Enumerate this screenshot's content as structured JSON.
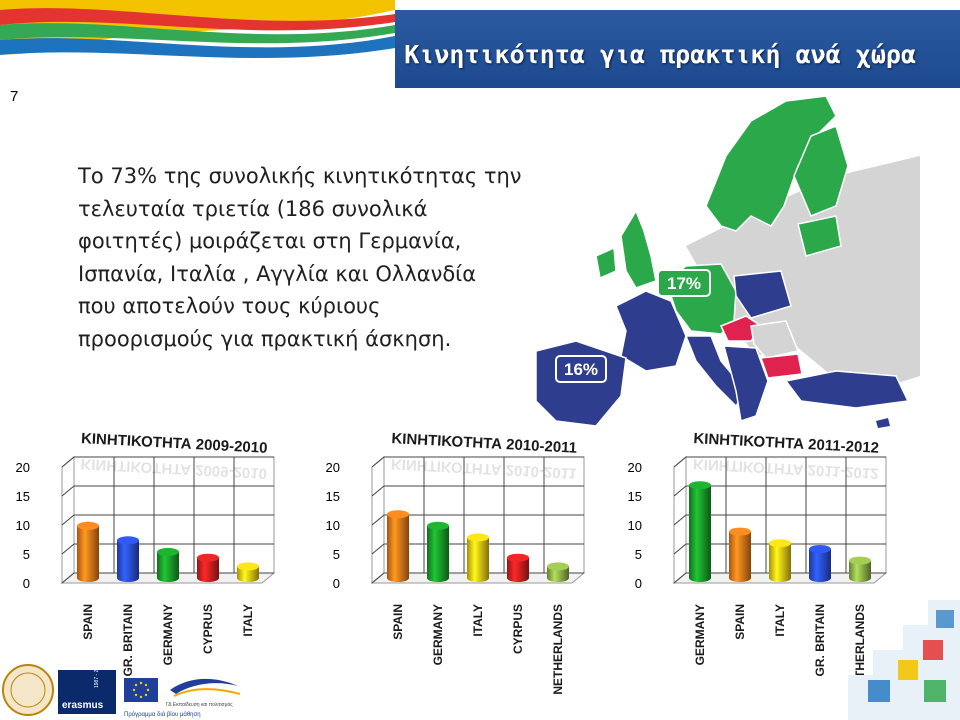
{
  "header": {
    "title": "Κινητικότητα για πρακτική ανά χώρα",
    "slide_number": "7"
  },
  "body": {
    "paragraph_lines": [
      "Το 73% της συνολικής κινητικότητας την",
      "τελευταία τριετία (186 συνολικά",
      "φοιτητές) μοιράζεται στη Γερμανία,",
      "Ισπανία, Ιταλία , Αγγλία και Ολλανδία",
      "που αποτελούν τους κύριους",
      "προορισμούς για πρακτική άσκηση."
    ]
  },
  "map": {
    "label_germany_share": "17%",
    "label_spain_share": "16%",
    "colors": {
      "green": "#2aa84a",
      "blue": "#2f3d8f",
      "red": "#e0224e",
      "grey": "#d4d4d4"
    }
  },
  "footer": {
    "program_text": "Πρόγραμμα διά βίου μάθηση",
    "ministry_text": "ΓΔ Εκπαίδευση και πολιτισμός",
    "erasmus_label": "erasmus",
    "erasmus_years": "1987 - 2012"
  },
  "chart_data": [
    {
      "type": "bar",
      "title": "ΚΙΝΗΤΙΚΟΤΗΤΑ 2009-2010",
      "categories": [
        "SPAIN",
        "GR. BRITAIN",
        "GERMANY",
        "CYPRUS",
        "ITALY"
      ],
      "values": [
        9,
        6.5,
        4.5,
        3.5,
        2
      ],
      "colors": [
        "#f07a1a",
        "#2a4ee0",
        "#1a9e2a",
        "#d42020",
        "#f0c814"
      ],
      "yticks": [
        "0",
        "5",
        "10",
        "15",
        "20"
      ],
      "ylim": [
        0,
        20
      ],
      "grid": true
    },
    {
      "type": "bar",
      "title": "ΚΙΝΗΤΙΚΟΤΗΤΑ 2010-2011",
      "categories": [
        "SPAIN",
        "GERMANY",
        "ITALY",
        "CYRPUS",
        "NETHERLANDS"
      ],
      "values": [
        11,
        9,
        7,
        3.5,
        2
      ],
      "colors": [
        "#f07a1a",
        "#1a9e2a",
        "#f0c814",
        "#d42020",
        "#8fb34a"
      ],
      "yticks": [
        "0",
        "5",
        "10",
        "15",
        "20"
      ],
      "ylim": [
        0,
        20
      ],
      "grid": true
    },
    {
      "type": "bar",
      "title": "ΚΙΝΗΤΙΚΟΤΗΤΑ 2011-2012",
      "categories": [
        "GERMANY",
        "SPAIN",
        "ITALY",
        "GR. BRITAIN",
        "NETHERLANDS"
      ],
      "values": [
        16,
        8,
        6,
        5,
        3
      ],
      "colors": [
        "#1a9e2a",
        "#f07a1a",
        "#f0c814",
        "#2a4ee0",
        "#8fb34a"
      ],
      "yticks": [
        "0",
        "5",
        "10",
        "15",
        "20"
      ],
      "ylim": [
        0,
        20
      ],
      "grid": true
    }
  ]
}
